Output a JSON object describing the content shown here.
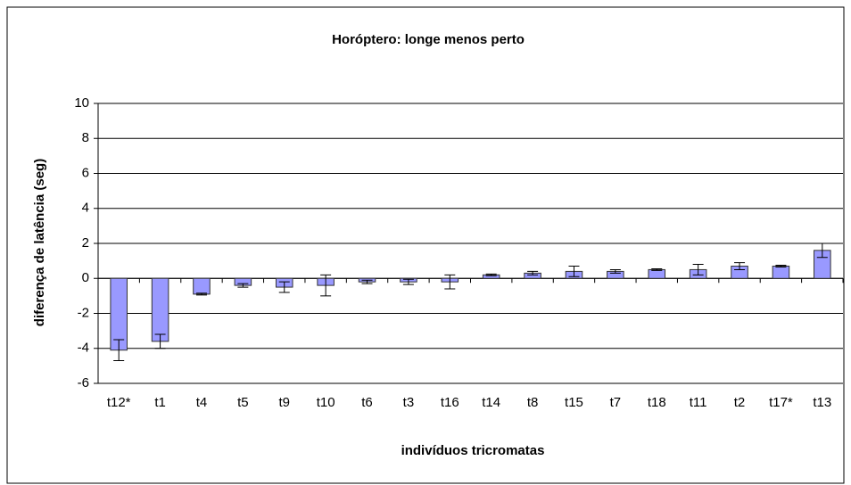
{
  "chart_data": {
    "type": "bar",
    "title": "Horóptero: longe menos perto",
    "x_label": "indivíduos tricromatas",
    "y_label": "diferença de latência (seg)",
    "categories": [
      "t12*",
      "t1",
      "t4",
      "t5",
      "t9",
      "t10",
      "t6",
      "t3",
      "t16",
      "t14",
      "t8",
      "t15",
      "t7",
      "t18",
      "t11",
      "t2",
      "t17*",
      "t13"
    ],
    "values": [
      -4.1,
      -3.6,
      -0.9,
      -0.4,
      -0.5,
      -0.4,
      -0.2,
      -0.2,
      -0.2,
      0.2,
      0.3,
      0.4,
      0.4,
      0.5,
      0.5,
      0.7,
      0.7,
      1.6
    ],
    "errors": [
      0.6,
      0.4,
      0.05,
      0.1,
      0.3,
      0.6,
      0.1,
      0.15,
      0.4,
      0.05,
      0.1,
      0.3,
      0.1,
      0.05,
      0.3,
      0.2,
      0.05,
      0.4
    ],
    "color": "#9999ff",
    "ylim": [
      -6,
      10
    ],
    "yticks": [
      -6,
      -4,
      -2,
      0,
      2,
      4,
      6,
      8,
      10
    ],
    "grid": true
  }
}
